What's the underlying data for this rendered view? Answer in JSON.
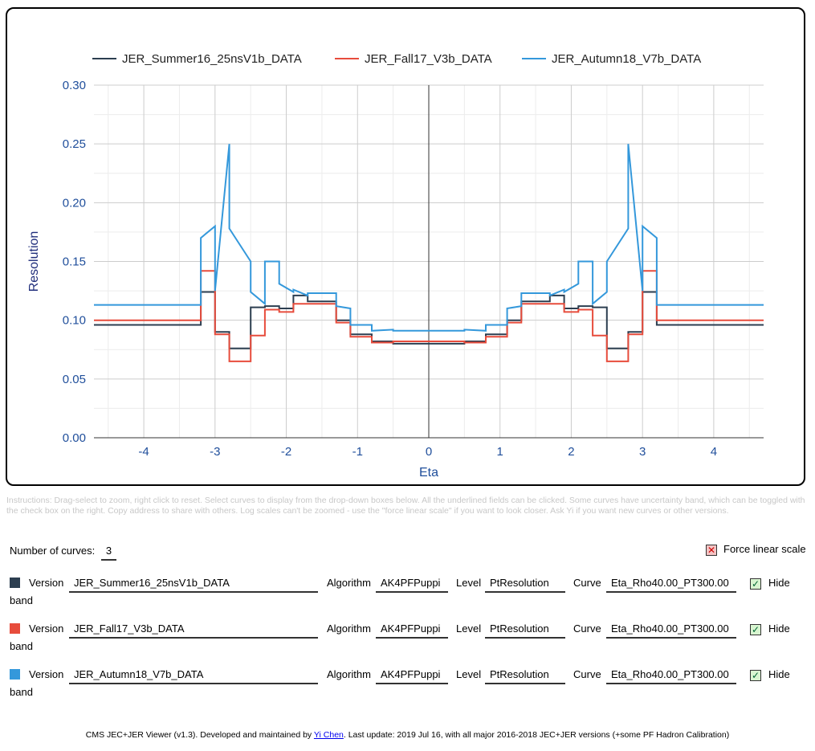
{
  "chart_data": {
    "type": "line",
    "xlabel": "Eta",
    "ylabel": "Resolution",
    "xlim": [
      -4.7,
      4.7
    ],
    "ylim": [
      0,
      0.3
    ],
    "x_ticks": [
      "-4",
      "-3",
      "-2",
      "-1",
      "0",
      "1",
      "2",
      "3",
      "4"
    ],
    "y_ticks": [
      "0.00",
      "0.05",
      "0.10",
      "0.15",
      "0.20",
      "0.25",
      "0.30"
    ],
    "legend_position": "top",
    "grid": true,
    "series": [
      {
        "name": "JER_Summer16_25nsV1b_DATA",
        "color": "#2c3e50",
        "x": [
          -4.7,
          -3.2,
          -3.2,
          -3.0,
          -3.0,
          -2.8,
          -2.8,
          -2.5,
          -2.5,
          -2.3,
          -2.3,
          -2.1,
          -2.1,
          -1.9,
          -1.9,
          -1.7,
          -1.7,
          -1.3,
          -1.3,
          -1.1,
          -1.1,
          -0.8,
          -0.8,
          -0.5,
          -0.5,
          0.5,
          0.5,
          0.8,
          0.8,
          1.1,
          1.1,
          1.3,
          1.3,
          1.7,
          1.7,
          1.9,
          1.9,
          2.1,
          2.1,
          2.3,
          2.3,
          2.5,
          2.5,
          2.8,
          2.8,
          3.0,
          3.0,
          3.2,
          3.2,
          4.7
        ],
        "y": [
          0.096,
          0.096,
          0.124,
          0.124,
          0.09,
          0.09,
          0.076,
          0.076,
          0.111,
          0.111,
          0.112,
          0.112,
          0.11,
          0.11,
          0.121,
          0.121,
          0.116,
          0.116,
          0.1,
          0.1,
          0.088,
          0.088,
          0.082,
          0.082,
          0.08,
          0.08,
          0.082,
          0.082,
          0.088,
          0.088,
          0.1,
          0.1,
          0.116,
          0.116,
          0.121,
          0.121,
          0.11,
          0.11,
          0.112,
          0.112,
          0.111,
          0.111,
          0.076,
          0.076,
          0.09,
          0.09,
          0.124,
          0.124,
          0.096,
          0.096
        ]
      },
      {
        "name": "JER_Fall17_V3b_DATA",
        "color": "#e74c3c",
        "x": [
          -4.7,
          -3.2,
          -3.2,
          -3.0,
          -3.0,
          -2.8,
          -2.8,
          -2.5,
          -2.5,
          -2.3,
          -2.3,
          -2.1,
          -2.1,
          -1.9,
          -1.9,
          -1.7,
          -1.7,
          -1.3,
          -1.3,
          -1.1,
          -1.1,
          -0.8,
          -0.8,
          -0.5,
          -0.5,
          0.5,
          0.5,
          0.8,
          0.8,
          1.1,
          1.1,
          1.3,
          1.3,
          1.7,
          1.7,
          1.9,
          1.9,
          2.1,
          2.1,
          2.3,
          2.3,
          2.5,
          2.5,
          2.8,
          2.8,
          3.0,
          3.0,
          3.2,
          3.2,
          4.7
        ],
        "y": [
          0.1,
          0.1,
          0.142,
          0.142,
          0.088,
          0.088,
          0.065,
          0.065,
          0.087,
          0.087,
          0.109,
          0.109,
          0.107,
          0.107,
          0.114,
          0.114,
          0.114,
          0.114,
          0.098,
          0.098,
          0.086,
          0.086,
          0.081,
          0.081,
          0.082,
          0.082,
          0.081,
          0.081,
          0.086,
          0.086,
          0.098,
          0.098,
          0.114,
          0.114,
          0.114,
          0.114,
          0.107,
          0.107,
          0.109,
          0.109,
          0.087,
          0.087,
          0.065,
          0.065,
          0.088,
          0.088,
          0.142,
          0.142,
          0.1,
          0.1
        ]
      },
      {
        "name": "JER_Autumn18_V7b_DATA",
        "color": "#3498db",
        "x": [
          -4.7,
          -3.2,
          -3.2,
          -3.0,
          -3.0,
          -2.8,
          -2.8,
          -2.5,
          -2.5,
          -2.3,
          -2.3,
          -2.1,
          -2.1,
          -1.9,
          -1.9,
          -1.7,
          -1.7,
          -1.3,
          -1.3,
          -1.1,
          -1.1,
          -0.8,
          -0.8,
          -0.5,
          -0.5,
          0.5,
          0.5,
          0.8,
          0.8,
          1.1,
          1.1,
          1.3,
          1.3,
          1.7,
          1.7,
          1.9,
          1.9,
          2.1,
          2.1,
          2.3,
          2.3,
          2.5,
          2.5,
          2.8,
          2.8,
          3.0,
          3.0,
          3.2,
          3.2,
          4.7
        ],
        "y": [
          0.113,
          0.113,
          0.17,
          0.18,
          0.125,
          0.25,
          0.178,
          0.15,
          0.124,
          0.114,
          0.15,
          0.15,
          0.131,
          0.124,
          0.126,
          0.121,
          0.123,
          0.123,
          0.112,
          0.11,
          0.096,
          0.096,
          0.091,
          0.092,
          0.091,
          0.091,
          0.092,
          0.091,
          0.096,
          0.096,
          0.11,
          0.112,
          0.123,
          0.123,
          0.121,
          0.126,
          0.124,
          0.131,
          0.15,
          0.15,
          0.114,
          0.124,
          0.15,
          0.178,
          0.25,
          0.125,
          0.18,
          0.17,
          0.113,
          0.113
        ]
      }
    ]
  },
  "instructions": "Instructions: Drag-select to zoom, right click to reset. Select curves to display from the drop-down boxes below. All the underlined fields can be clicked. Some curves have uncertainty band, which can be toggled with the check box on the right. Copy address to share with others. Log scales can't be zoomed - use the \"force linear scale\" if you want to look closer. Ask Yi if you want new curves or other versions.",
  "controls": {
    "num_curves_label": "Number of curves:",
    "num_curves_value": "3",
    "force_linear_label": "Force linear scale",
    "force_linear_mark": "✕"
  },
  "rows": [
    {
      "swatch": "#2c3e50",
      "version_label": "Version",
      "version": "JER_Summer16_25nsV1b_DATA",
      "algorithm_label": "Algorithm",
      "algorithm": "AK4PFPuppi",
      "level_label": "Level",
      "level": "PtResolution",
      "curve_label": "Curve",
      "curve": "Eta_Rho40.00_PT300.00",
      "hide_label": "Hide",
      "band_label": "band",
      "check_mark": "✓"
    },
    {
      "swatch": "#e74c3c",
      "version_label": "Version",
      "version": "JER_Fall17_V3b_DATA",
      "algorithm_label": "Algorithm",
      "algorithm": "AK4PFPuppi",
      "level_label": "Level",
      "level": "PtResolution",
      "curve_label": "Curve",
      "curve": "Eta_Rho40.00_PT300.00",
      "hide_label": "Hide",
      "band_label": "band",
      "check_mark": "✓"
    },
    {
      "swatch": "#3498db",
      "version_label": "Version",
      "version": "JER_Autumn18_V7b_DATA",
      "algorithm_label": "Algorithm",
      "algorithm": "AK4PFPuppi",
      "level_label": "Level",
      "level": "PtResolution",
      "curve_label": "Curve",
      "curve": "Eta_Rho40.00_PT300.00",
      "hide_label": "Hide",
      "band_label": "band",
      "check_mark": "✓"
    }
  ],
  "footer": {
    "prefix": "CMS JEC+JER Viewer (v1.3). Developed and maintained by ",
    "author": "Yi Chen",
    "suffix": ". Last update: 2019 Jul 16, with all major 2016-2018 JEC+JER versions (+some PF Hadron Calibration)"
  }
}
